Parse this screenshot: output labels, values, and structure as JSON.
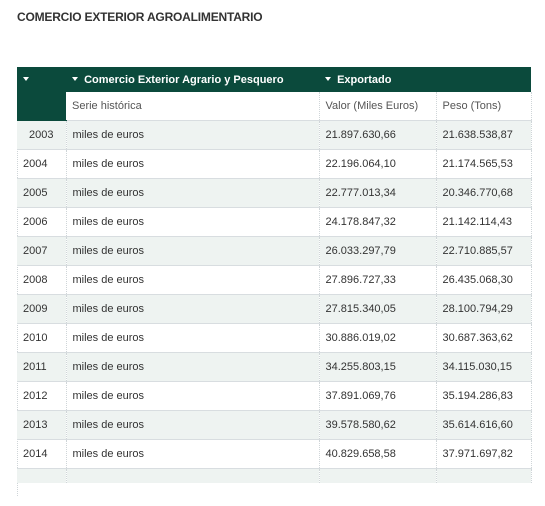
{
  "page": {
    "title": "COMERCIO EXTERIOR AGROALIMENTARIO"
  },
  "table": {
    "header_top": [
      {
        "label": ""
      },
      {
        "label": "Comercio Exterior Agrario y Pesquero"
      },
      {
        "label": "Exportado"
      }
    ],
    "header_sub": [
      "Serie histórica",
      "Valor (Miles Euros)",
      "Peso (Tons)"
    ],
    "rows": [
      {
        "year": "2003",
        "serie": "miles de euros",
        "valor": "21.897.630,66",
        "peso": "21.638.538,87"
      },
      {
        "year": "2004",
        "serie": "miles de euros",
        "valor": "22.196.064,10",
        "peso": "21.174.565,53"
      },
      {
        "year": "2005",
        "serie": "miles de euros",
        "valor": "22.777.013,34",
        "peso": "20.346.770,68"
      },
      {
        "year": "2006",
        "serie": "miles de euros",
        "valor": "24.178.847,32",
        "peso": "21.142.114,43"
      },
      {
        "year": "2007",
        "serie": "miles de euros",
        "valor": "26.033.297,79",
        "peso": "22.710.885,57"
      },
      {
        "year": "2008",
        "serie": "miles de euros",
        "valor": "27.896.727,33",
        "peso": "26.435.068,30"
      },
      {
        "year": "2009",
        "serie": "miles de euros",
        "valor": "27.815.340,05",
        "peso": "28.100.794,29"
      },
      {
        "year": "2010",
        "serie": "miles de euros",
        "valor": "30.886.019,02",
        "peso": "30.687.363,62"
      },
      {
        "year": "2011",
        "serie": "miles de euros",
        "valor": "34.255.803,15",
        "peso": "34.115.030,15"
      },
      {
        "year": "2012",
        "serie": "miles de euros",
        "valor": "37.891.069,76",
        "peso": "35.194.286,83"
      },
      {
        "year": "2013",
        "serie": "miles de euros",
        "valor": "39.578.580,62",
        "peso": "35.614.616,60"
      },
      {
        "year": "2014",
        "serie": "miles de euros",
        "valor": "40.829.658,58",
        "peso": "37.971.697,82"
      }
    ]
  },
  "colors": {
    "header_bg": "#0b4a3c",
    "header_text": "#ffffff",
    "row_shade": "#eef3f1"
  },
  "icons": {
    "sort": "caret-down-icon"
  }
}
